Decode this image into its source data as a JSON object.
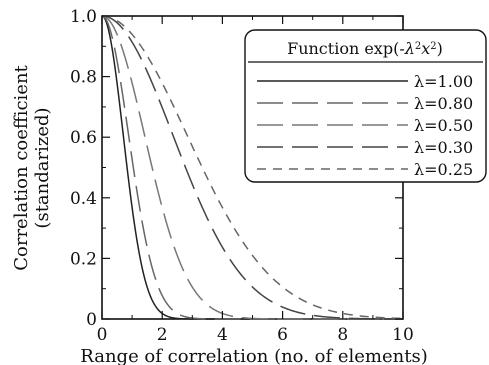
{
  "chart_data": {
    "type": "line",
    "function_label": "exp(-λ²x²)",
    "xlabel": "Range of correlation (no. of elements)",
    "ylabel_lines": [
      "Correlation coefficient",
      "(standarized)"
    ],
    "xlim": [
      0,
      10
    ],
    "ylim": [
      0,
      1
    ],
    "x_ticks": [
      "0",
      "2",
      "4",
      "6",
      "8",
      "10"
    ],
    "y_ticks": [
      "0",
      "0.2",
      "0.4",
      "0.6",
      "0.8",
      "1.0"
    ],
    "grid": false,
    "legend": {
      "title_prefix": "Function exp(-",
      "title_lambda": "λ",
      "title_x": "x",
      "title_suffix": ")",
      "placement": "top-right"
    },
    "series": [
      {
        "name": "λ=1.00",
        "lambda": 1.0,
        "color": "#222222",
        "dash": "solid"
      },
      {
        "name": "λ=0.80",
        "lambda": 0.8,
        "color": "#666666",
        "dash": "long-dash"
      },
      {
        "name": "λ=0.50",
        "lambda": 0.5,
        "color": "#777777",
        "dash": "long-dash"
      },
      {
        "name": "λ=0.30",
        "lambda": 0.3,
        "color": "#444444",
        "dash": "long-dash"
      },
      {
        "name": "λ=0.25",
        "lambda": 0.25,
        "color": "#666666",
        "dash": "short-dash"
      }
    ]
  }
}
